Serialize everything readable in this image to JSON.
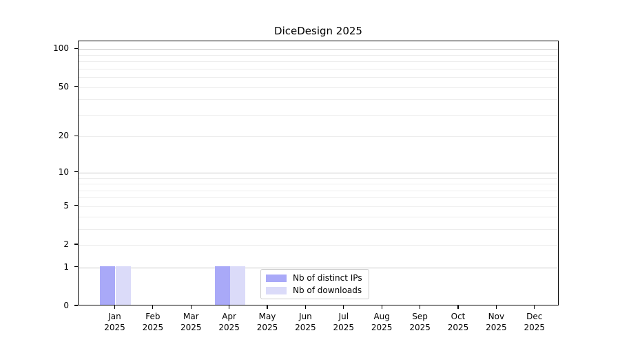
{
  "chart_data": {
    "type": "bar",
    "title": "DiceDesign 2025",
    "categories": [
      "Jan",
      "Feb",
      "Mar",
      "Apr",
      "May",
      "Jun",
      "Jul",
      "Aug",
      "Sep",
      "Oct",
      "Nov",
      "Dec"
    ],
    "category_year": "2025",
    "series": [
      {
        "name": "Nb of distinct IPs",
        "color": "#a9a9f8",
        "values": [
          1,
          0,
          0,
          1,
          0,
          0,
          0,
          0,
          0,
          0,
          0,
          0
        ]
      },
      {
        "name": "Nb of downloads",
        "color": "#dbdbf9",
        "values": [
          1,
          0,
          0,
          1,
          0,
          0,
          0,
          0,
          0,
          0,
          0,
          0
        ]
      }
    ],
    "xlabel": "",
    "ylabel": "",
    "y_scale": "log1p",
    "y_ticks": [
      0,
      1,
      2,
      5,
      10,
      20,
      50,
      100
    ],
    "ylim": [
      0,
      115
    ],
    "gridlines": {
      "major": [
        1,
        10,
        100
      ],
      "minor": [
        2,
        3,
        4,
        5,
        6,
        7,
        8,
        9,
        20,
        30,
        40,
        50,
        60,
        70,
        80,
        90
      ]
    },
    "grid_on": true,
    "legend_position": "lower center",
    "colors": {
      "major_grid": "#c6c6c6",
      "minor_grid": "#ededed",
      "spine": "#000000",
      "legend_border": "#cccccc",
      "text": "#000000"
    }
  }
}
